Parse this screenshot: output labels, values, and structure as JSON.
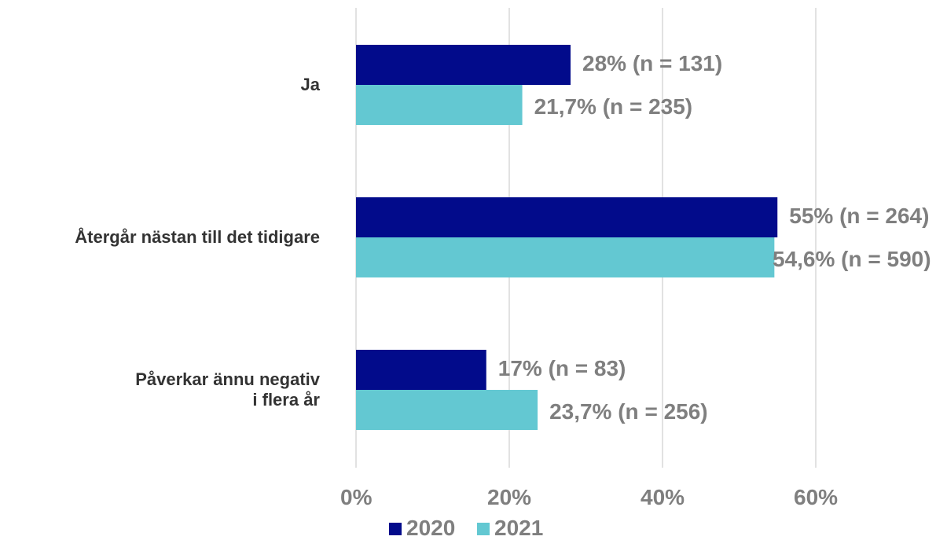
{
  "chart_data": {
    "type": "bar",
    "orientation": "horizontal",
    "categories": [
      "Ja",
      "Återgår nästan till det tidigare",
      "Påverkar ännu negativ\ni flera år"
    ],
    "series": [
      {
        "name": "2020",
        "color": "#020b8b",
        "values": [
          28,
          55,
          17
        ],
        "value_labels": [
          "28% (n = 131)",
          "55% (n = 264)",
          "17% (n = 83)"
        ]
      },
      {
        "name": "2021",
        "color": "#63c8d2",
        "values": [
          21.7,
          54.6,
          23.7
        ],
        "value_labels": [
          "21,7% (n = 235)",
          "54,6% (n = 590)",
          "23,7% (n = 256)"
        ]
      }
    ],
    "xlim": [
      0,
      70
    ],
    "xticks": [
      {
        "value": 0,
        "label": "0%"
      },
      {
        "value": 20,
        "label": "20%"
      },
      {
        "value": 40,
        "label": "40%"
      },
      {
        "value": 60,
        "label": "60%"
      }
    ],
    "grid": true,
    "legend": "bottom"
  }
}
